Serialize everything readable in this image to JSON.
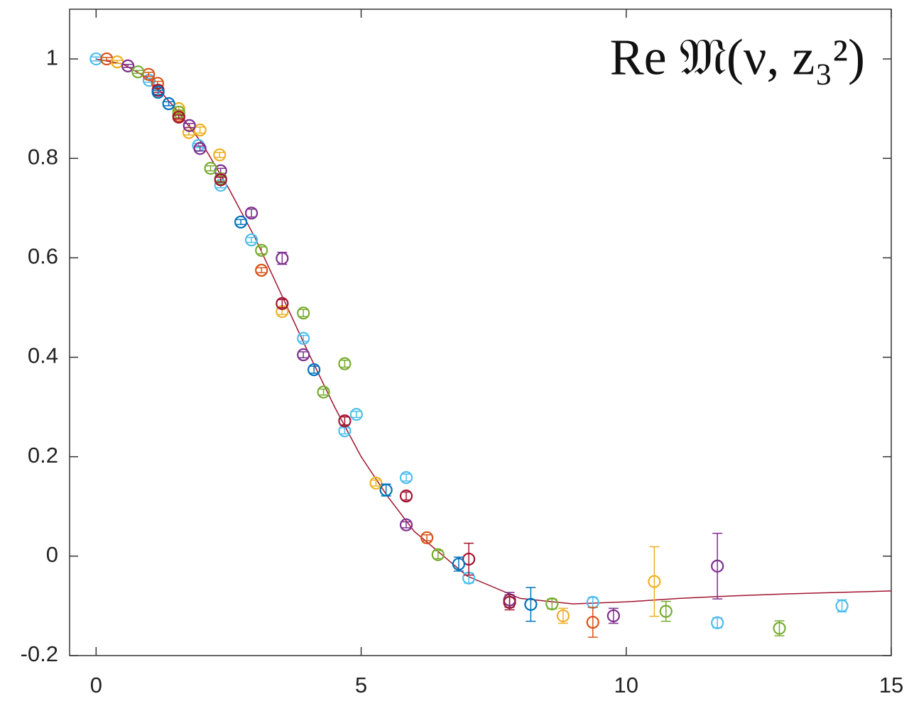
{
  "chart_data": {
    "type": "scatter",
    "title": "Re 𝔐(ν, z₃²)",
    "xlim": [
      -0.5,
      15
    ],
    "ylim": [
      -0.2,
      1.1
    ],
    "xticks": [
      0,
      5,
      10,
      15
    ],
    "yticks": [
      -0.2,
      0,
      0.2,
      0.4,
      0.6,
      0.8,
      1
    ],
    "box": true,
    "series": [
      {
        "color": "#4DBEEE",
        "x": [
          0,
          1.0,
          1.93,
          2.35,
          2.93,
          3.91,
          4.69,
          4.91,
          5.85,
          7.03,
          9.37,
          11.72,
          14.07
        ],
        "values": [
          1.0,
          0.957,
          0.826,
          0.746,
          0.636,
          0.438,
          0.252,
          0.285,
          0.158,
          -0.044,
          -0.093,
          -0.134,
          -0.1
        ],
        "errors": [
          0.004,
          0.004,
          0.004,
          0.005,
          0.005,
          0.006,
          0.006,
          0.006,
          0.007,
          0.01,
          0.01,
          0.01,
          0.012
        ]
      },
      {
        "color": "#D95319",
        "x": [
          0.2,
          0.99,
          1.16,
          1.56,
          3.12,
          6.24,
          9.37
        ],
        "values": [
          1.0,
          0.969,
          0.951,
          0.886,
          0.575,
          0.037,
          -0.133
        ],
        "errors": [
          0.003,
          0.004,
          0.004,
          0.005,
          0.005,
          0.006,
          0.03
        ]
      },
      {
        "color": "#EDB120",
        "x": [
          0.4,
          1.56,
          1.75,
          1.96,
          2.33,
          3.51,
          5.28,
          8.81,
          10.53
        ],
        "values": [
          0.994,
          0.9,
          0.852,
          0.857,
          0.807,
          0.492,
          0.147,
          -0.12,
          -0.051
        ],
        "errors": [
          0.003,
          0.004,
          0.005,
          0.006,
          0.005,
          0.006,
          0.006,
          0.015,
          0.07
        ]
      },
      {
        "color": "#7E2F8E",
        "x": [
          0.6,
          1.76,
          1.96,
          2.35,
          2.93,
          3.51,
          3.91,
          5.85,
          7.8,
          9.76,
          11.72
        ],
        "values": [
          0.986,
          0.866,
          0.82,
          0.775,
          0.69,
          0.599,
          0.405,
          0.063,
          -0.088,
          -0.12,
          -0.02
        ],
        "errors": [
          0.003,
          0.004,
          0.005,
          0.005,
          0.008,
          0.012,
          0.006,
          0.006,
          0.015,
          0.015,
          0.066
        ]
      },
      {
        "color": "#77AC30",
        "x": [
          0.79,
          1.56,
          2.16,
          2.35,
          3.12,
          3.91,
          4.29,
          4.69,
          6.45,
          8.6,
          10.75,
          12.89
        ],
        "values": [
          0.974,
          0.893,
          0.78,
          0.759,
          0.615,
          0.489,
          0.33,
          0.387,
          0.003,
          -0.096,
          -0.111,
          -0.145
        ],
        "errors": [
          0.003,
          0.004,
          0.005,
          0.005,
          0.007,
          0.007,
          0.006,
          0.007,
          0.008,
          0.01,
          0.02,
          0.015
        ]
      },
      {
        "color": "#A2142F",
        "x": [
          1.17,
          1.56,
          2.35,
          3.51,
          4.69,
          5.85,
          7.03,
          7.8
        ],
        "values": [
          0.937,
          0.883,
          0.757,
          0.508,
          0.272,
          0.121,
          -0.006,
          -0.093
        ],
        "errors": [
          0.004,
          0.004,
          0.005,
          0.008,
          0.008,
          0.008,
          0.032,
          0.015
        ]
      },
      {
        "color": "#0072BD",
        "x": [
          1.17,
          1.37,
          2.73,
          4.11,
          5.47,
          6.84,
          8.2
        ],
        "values": [
          0.933,
          0.91,
          0.672,
          0.375,
          0.133,
          -0.016,
          -0.097
        ],
        "errors": [
          0.004,
          0.004,
          0.005,
          0.007,
          0.012,
          0.014,
          0.034
        ]
      }
    ],
    "fit": {
      "color": "#A2142F",
      "x": [
        0,
        0.5,
        1,
        1.5,
        2,
        2.5,
        3,
        3.5,
        4,
        4.5,
        5,
        5.5,
        6,
        7,
        8,
        9,
        10,
        11,
        12,
        13,
        14,
        15
      ],
      "values": [
        1.0,
        0.99,
        0.96,
        0.9,
        0.83,
        0.74,
        0.64,
        0.525,
        0.41,
        0.3,
        0.2,
        0.12,
        0.05,
        -0.04,
        -0.085,
        -0.096,
        -0.092,
        -0.085,
        -0.08,
        -0.076,
        -0.073,
        -0.07
      ]
    }
  }
}
